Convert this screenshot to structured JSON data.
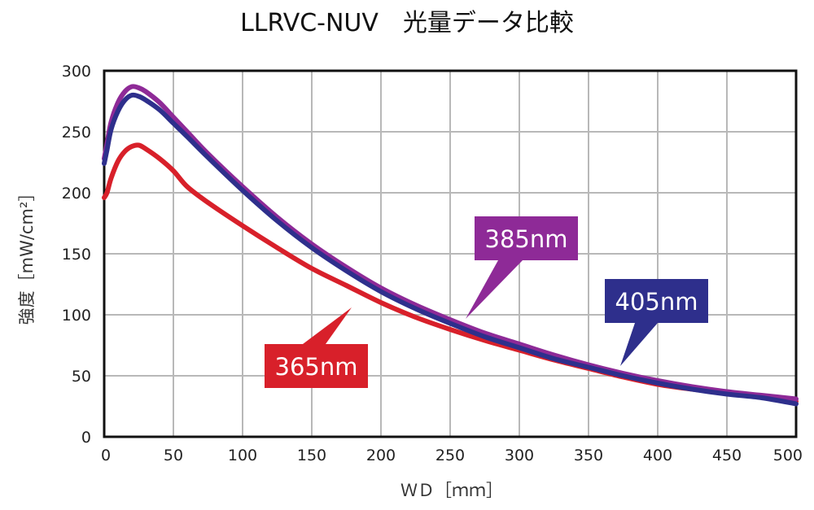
{
  "chart_data": {
    "type": "line",
    "title": "LLRVC-NUV　光量データ比較",
    "xlabel": "ＷＤ［ｍｍ］",
    "ylabel": "強度［mW/cm²］",
    "xlim": [
      0,
      500
    ],
    "ylim": [
      0,
      300
    ],
    "x_ticks": [
      0,
      50,
      100,
      150,
      200,
      250,
      300,
      350,
      400,
      450,
      500
    ],
    "y_ticks": [
      0,
      50,
      100,
      150,
      200,
      250,
      300
    ],
    "grid": true,
    "series": [
      {
        "name": "365nm",
        "color": "#d8202a",
        "x": [
          0,
          2,
          5,
          10,
          15,
          20,
          25,
          30,
          40,
          50,
          60,
          75,
          100,
          125,
          150,
          175,
          200,
          225,
          250,
          275,
          300,
          325,
          350,
          375,
          400,
          425,
          450,
          475,
          500
        ],
        "y": [
          196,
          200,
          212,
          226,
          234,
          238,
          239,
          236,
          228,
          218,
          205,
          192,
          173,
          155,
          138,
          124,
          110,
          98,
          88,
          79,
          71,
          63,
          56,
          49,
          43,
          39,
          36,
          33,
          29
        ]
      },
      {
        "name": "385nm",
        "color": "#8e2a97",
        "x": [
          0,
          2,
          5,
          10,
          15,
          20,
          25,
          30,
          40,
          50,
          60,
          75,
          100,
          125,
          150,
          175,
          200,
          225,
          250,
          275,
          300,
          325,
          350,
          375,
          400,
          425,
          450,
          475,
          500
        ],
        "y": [
          228,
          240,
          258,
          274,
          283,
          287,
          286,
          283,
          274,
          262,
          250,
          232,
          205,
          180,
          158,
          139,
          122,
          108,
          96,
          85,
          76,
          67,
          59,
          52,
          46,
          41,
          37,
          34,
          31
        ]
      },
      {
        "name": "405nm",
        "color": "#2e2f8c",
        "x": [
          0,
          2,
          5,
          10,
          15,
          20,
          25,
          30,
          40,
          50,
          60,
          75,
          100,
          125,
          150,
          175,
          200,
          225,
          250,
          275,
          300,
          325,
          350,
          375,
          400,
          425,
          450,
          475,
          500
        ],
        "y": [
          224,
          235,
          252,
          267,
          276,
          280,
          279,
          276,
          268,
          257,
          246,
          229,
          202,
          177,
          155,
          136,
          119,
          105,
          93,
          82,
          73,
          64,
          57,
          50,
          44,
          39,
          35,
          32,
          27
        ]
      }
    ],
    "annotations": [
      {
        "text": "385nm",
        "series": "385nm",
        "color": "#8e2a97"
      },
      {
        "text": "405nm",
        "series": "405nm",
        "color": "#2e2f8c"
      },
      {
        "text": "365nm",
        "series": "365nm",
        "color": "#d8202a"
      }
    ]
  }
}
